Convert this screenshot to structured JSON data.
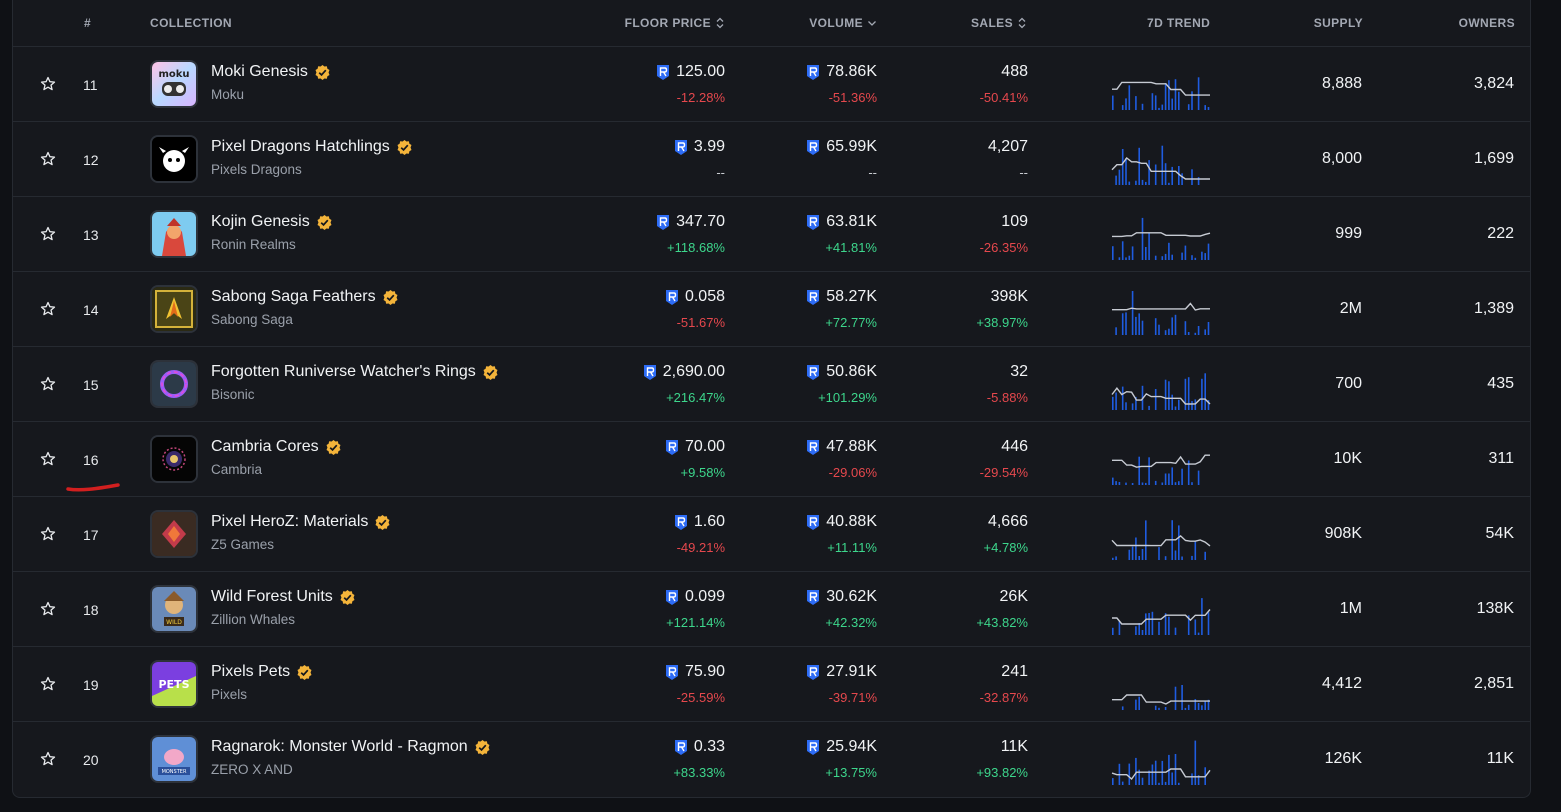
{
  "header": {
    "rank": "#",
    "collection": "COLLECTION",
    "floor_price": "FLOOR PRICE",
    "volume": "VOLUME",
    "sales": "SALES",
    "trend": "7D TREND",
    "supply": "SUPPLY",
    "owners": "OWNERS"
  },
  "colors": {
    "negative": "#e5484d",
    "positive": "#3dd68c",
    "ron_icon": "#2d6cf6",
    "verified": "#f4b43a",
    "trend_bars": "#1f5ce0",
    "trend_line": "#c7cbd3"
  },
  "rows": [
    {
      "rank": "11",
      "name": "Moki Genesis",
      "owner": "Moku",
      "floor": "125.00",
      "floor_chg": "-12.28%",
      "volume": "78.86K",
      "volume_chg": "-51.36%",
      "sales": "488",
      "sales_chg": "-50.41%",
      "supply": "8,888",
      "owners": "3,824",
      "thumb": "moki-thumb"
    },
    {
      "rank": "12",
      "name": "Pixel Dragons Hatchlings",
      "owner": "Pixels Dragons",
      "floor": "3.99",
      "floor_chg": "--",
      "volume": "65.99K",
      "volume_chg": "--",
      "sales": "4,207",
      "sales_chg": "--",
      "supply": "8,000",
      "owners": "1,699",
      "thumb": "dragon-thumb"
    },
    {
      "rank": "13",
      "name": "Kojin Genesis",
      "owner": "Ronin Realms",
      "floor": "347.70",
      "floor_chg": "+118.68%",
      "volume": "63.81K",
      "volume_chg": "+41.81%",
      "sales": "109",
      "sales_chg": "-26.35%",
      "supply": "999",
      "owners": "222",
      "thumb": "kojin-thumb"
    },
    {
      "rank": "14",
      "name": "Sabong Saga Feathers",
      "owner": "Sabong Saga",
      "floor": "0.058",
      "floor_chg": "-51.67%",
      "volume": "58.27K",
      "volume_chg": "+72.77%",
      "sales": "398K",
      "sales_chg": "+38.97%",
      "supply": "2M",
      "owners": "1,389",
      "thumb": "sabong-thumb"
    },
    {
      "rank": "15",
      "name": "Forgotten Runiverse Watcher's Rings",
      "owner": "Bisonic",
      "floor": "2,690.00",
      "floor_chg": "+216.47%",
      "volume": "50.86K",
      "volume_chg": "+101.29%",
      "sales": "32",
      "sales_chg": "-5.88%",
      "supply": "700",
      "owners": "435",
      "thumb": "ring-thumb"
    },
    {
      "rank": "16",
      "name": "Cambria Cores",
      "owner": "Cambria",
      "floor": "70.00",
      "floor_chg": "+9.58%",
      "volume": "47.88K",
      "volume_chg": "-29.06%",
      "sales": "446",
      "sales_chg": "-29.54%",
      "supply": "10K",
      "owners": "311",
      "thumb": "cambria-thumb"
    },
    {
      "rank": "17",
      "name": "Pixel HeroZ: Materials",
      "owner": "Z5 Games",
      "floor": "1.60",
      "floor_chg": "-49.21%",
      "volume": "40.88K",
      "volume_chg": "+11.11%",
      "sales": "4,666",
      "sales_chg": "+4.78%",
      "supply": "908K",
      "owners": "54K",
      "thumb": "heroz-thumb"
    },
    {
      "rank": "18",
      "name": "Wild Forest Units",
      "owner": "Zillion Whales",
      "floor": "0.099",
      "floor_chg": "+121.14%",
      "volume": "30.62K",
      "volume_chg": "+42.32%",
      "sales": "26K",
      "sales_chg": "+43.82%",
      "supply": "1M",
      "owners": "138K",
      "thumb": "wildforest-thumb"
    },
    {
      "rank": "19",
      "name": "Pixels Pets",
      "owner": "Pixels",
      "floor": "75.90",
      "floor_chg": "-25.59%",
      "volume": "27.91K",
      "volume_chg": "-39.71%",
      "sales": "241",
      "sales_chg": "-32.87%",
      "supply": "4,412",
      "owners": "2,851",
      "thumb": "pets-thumb"
    },
    {
      "rank": "20",
      "name": "Ragnarok: Monster World - Ragmon",
      "owner": "ZERO X AND",
      "floor": "0.33",
      "floor_chg": "+83.33%",
      "volume": "25.94K",
      "volume_chg": "+13.75%",
      "sales": "11K",
      "sales_chg": "+93.82%",
      "supply": "126K",
      "owners": "11K",
      "thumb": "ragmon-thumb"
    }
  ]
}
